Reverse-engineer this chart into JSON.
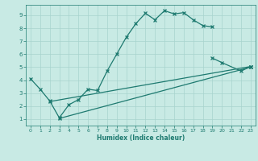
{
  "xlabel": "Humidex (Indice chaleur)",
  "xlim": [
    -0.5,
    23.5
  ],
  "ylim": [
    0.5,
    9.8
  ],
  "xticks": [
    0,
    1,
    2,
    3,
    4,
    5,
    6,
    7,
    8,
    9,
    10,
    11,
    12,
    13,
    14,
    15,
    16,
    17,
    18,
    19,
    20,
    21,
    22,
    23
  ],
  "yticks": [
    1,
    2,
    3,
    4,
    5,
    6,
    7,
    8,
    9
  ],
  "bg_color": "#c8eae4",
  "line_color": "#1e7a70",
  "grid_color": "#a8d4ce",
  "line1_x": [
    0,
    1,
    2,
    3,
    4,
    5,
    6,
    7,
    8,
    9,
    10,
    11,
    12,
    13,
    14,
    15,
    16,
    17,
    18,
    19
  ],
  "line1_y": [
    4.1,
    3.3,
    2.4,
    1.1,
    2.1,
    2.5,
    3.3,
    3.2,
    4.7,
    6.0,
    7.3,
    8.35,
    9.15,
    8.65,
    9.35,
    9.1,
    9.2,
    8.65,
    8.2,
    8.1
  ],
  "line2_x": [
    19,
    20,
    22,
    23
  ],
  "line2_y": [
    5.7,
    5.35,
    4.7,
    5.05
  ],
  "line3_x": [
    2,
    23
  ],
  "line3_y": [
    2.35,
    5.05
  ],
  "line4_x": [
    3,
    23
  ],
  "line4_y": [
    1.05,
    5.0
  ]
}
